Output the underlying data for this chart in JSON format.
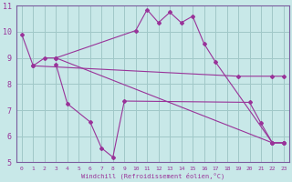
{
  "xlabel": "Windchill (Refroidissement éolien,°C)",
  "background_color": "#c8e8e8",
  "grid_color": "#a0c8c8",
  "line_color": "#993399",
  "spine_color": "#7a5c9e",
  "xlim": [
    -0.5,
    23.5
  ],
  "ylim": [
    5,
    11
  ],
  "xticks": [
    0,
    1,
    2,
    3,
    4,
    5,
    6,
    7,
    8,
    9,
    10,
    11,
    12,
    13,
    14,
    15,
    16,
    17,
    18,
    19,
    20,
    21,
    22,
    23
  ],
  "yticks": [
    5,
    6,
    7,
    8,
    9,
    10,
    11
  ],
  "series": [
    {
      "x": [
        0,
        1,
        2,
        3,
        10,
        11,
        12,
        13,
        14,
        15,
        16,
        17,
        22,
        23
      ],
      "y": [
        9.9,
        8.7,
        9.0,
        9.0,
        10.05,
        10.85,
        10.35,
        10.75,
        10.35,
        10.6,
        9.55,
        8.85,
        5.75,
        5.75
      ]
    },
    {
      "x": [
        3,
        22,
        23
      ],
      "y": [
        9.0,
        5.75,
        5.75
      ]
    },
    {
      "x": [
        1,
        19,
        22,
        23
      ],
      "y": [
        8.7,
        8.3,
        8.3,
        8.3
      ]
    },
    {
      "x": [
        3,
        4,
        6,
        7,
        8,
        9,
        20,
        21,
        22,
        23
      ],
      "y": [
        8.75,
        7.25,
        6.55,
        5.55,
        5.2,
        7.35,
        7.3,
        6.5,
        5.75,
        5.75
      ]
    }
  ]
}
